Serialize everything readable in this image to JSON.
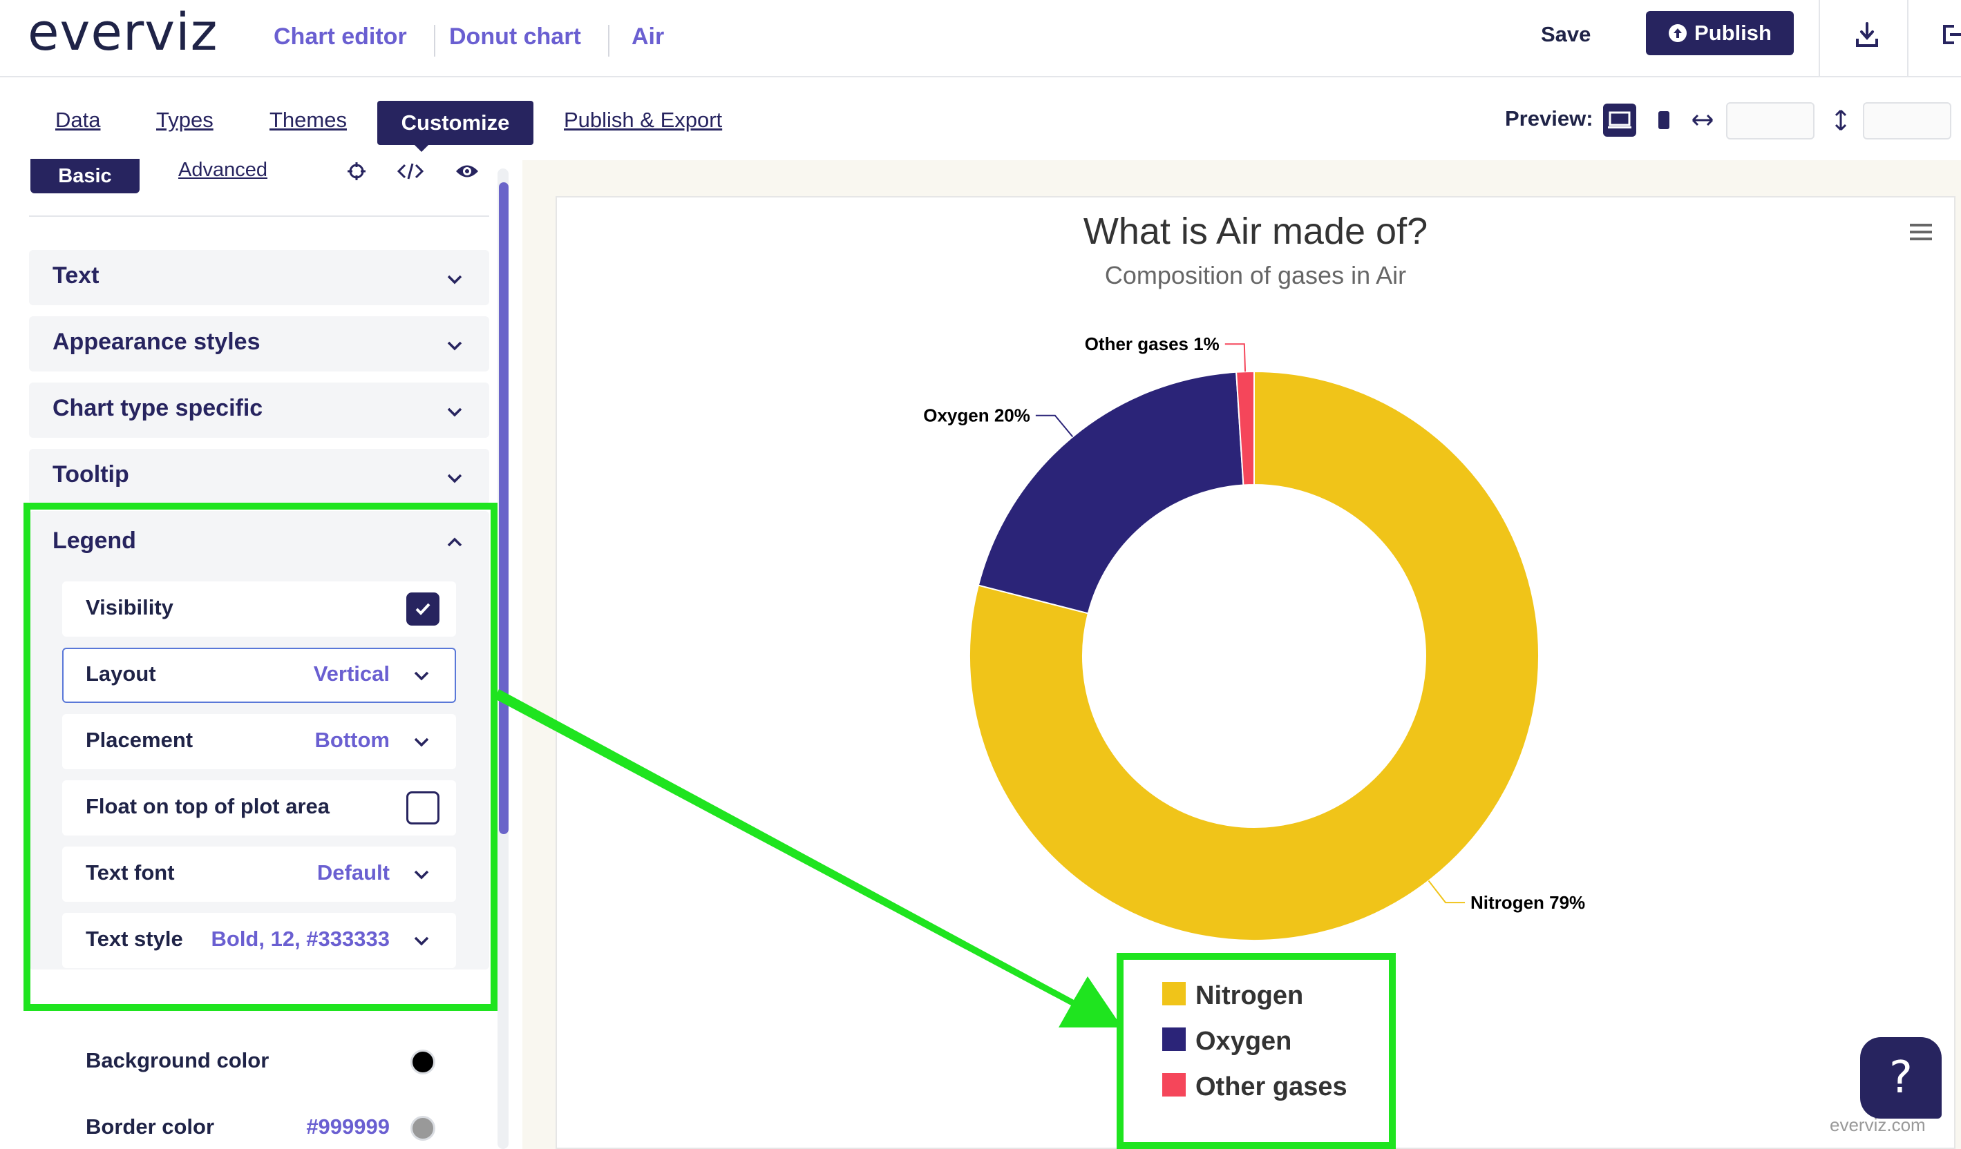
{
  "app": {
    "logo": "everviz"
  },
  "breadcrumb": {
    "chart_editor": "Chart editor",
    "chart_type": "Donut chart",
    "project": "Air"
  },
  "header": {
    "save_label": "Save",
    "publish_label": "Publish"
  },
  "tabs": [
    {
      "label": "Data"
    },
    {
      "label": "Types"
    },
    {
      "label": "Themes"
    },
    {
      "label": "Customize"
    },
    {
      "label": "Publish & Export"
    }
  ],
  "preview": {
    "label": "Preview:",
    "width_value": "",
    "height_value": ""
  },
  "panel": {
    "basic_label": "Basic",
    "advanced_label": "Advanced",
    "sections": [
      "Text",
      "Appearance styles",
      "Chart type specific",
      "Tooltip",
      "Legend"
    ],
    "legend_options": {
      "visibility": {
        "label": "Visibility",
        "checked": true
      },
      "layout": {
        "label": "Layout",
        "value": "Vertical"
      },
      "placement": {
        "label": "Placement",
        "value": "Bottom"
      },
      "float": {
        "label": "Float on top of plot area",
        "checked": false
      },
      "text_font": {
        "label": "Text font",
        "value": "Default"
      },
      "text_style": {
        "label": "Text style",
        "value": "Bold, 12, #333333"
      }
    },
    "extra_options": {
      "background_color": {
        "label": "Background color",
        "color": "#000000"
      },
      "border_color": {
        "label": "Border color",
        "value": "#999999",
        "color": "#999999"
      }
    }
  },
  "chart_data": {
    "type": "pie",
    "title": "What is Air made of?",
    "subtitle": "Composition of gases in Air",
    "categories": [
      "Nitrogen",
      "Oxygen",
      "Other gases"
    ],
    "values": [
      79,
      20,
      1
    ],
    "data_labels": [
      "Nitrogen 79%",
      "Oxygen 20%",
      "Other gases 1%"
    ],
    "colors": [
      "#f0c419",
      "#2b2478",
      "#f5465a"
    ],
    "legend": {
      "placement": "bottom",
      "layout": "vertical"
    },
    "credits": "everviz.com"
  },
  "help": {
    "label": "?"
  }
}
